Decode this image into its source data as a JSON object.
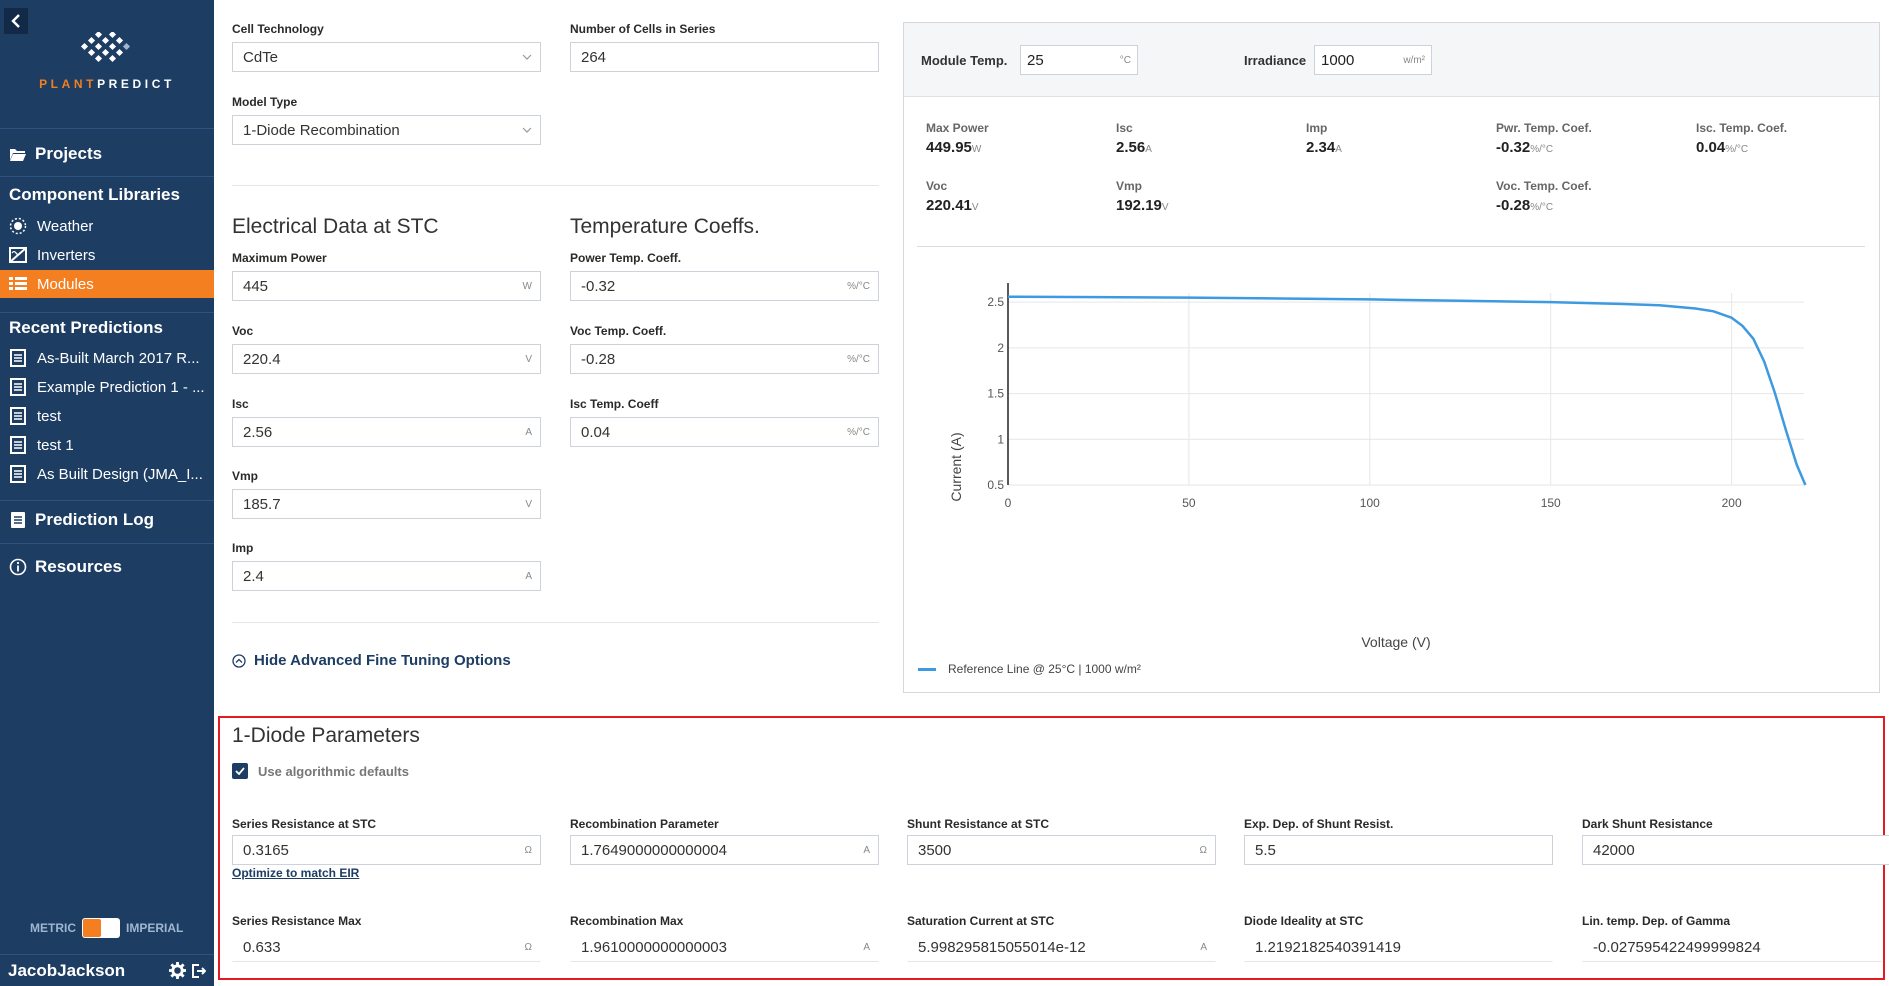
{
  "sidebar": {
    "logo_plant": "PLANT",
    "logo_predict": "PREDICT",
    "projects": "Projects",
    "component_libraries": "Component Libraries",
    "weather": "Weather",
    "inverters": "Inverters",
    "modules": "Modules",
    "recent_predictions": "Recent Predictions",
    "recent_items": [
      "As-Built March 2017 R...",
      "Example Prediction 1 - ...",
      "test",
      "test 1",
      "As Built Design (JMA_I..."
    ],
    "prediction_log": "Prediction Log",
    "resources": "Resources",
    "metric": "METRIC",
    "imperial": "IMPERIAL",
    "user": "JacobJackson"
  },
  "form": {
    "cell_technology_label": "Cell Technology",
    "cell_technology_value": "CdTe",
    "cells_in_series_label": "Number of Cells in Series",
    "cells_in_series_value": "264",
    "model_type_label": "Model Type",
    "model_type_value": "1-Diode Recombination",
    "electrical_title": "Electrical Data at STC",
    "temp_title": "Temperature Coeffs.",
    "max_power_label": "Maximum Power",
    "max_power_value": "445",
    "max_power_unit": "W",
    "voc_label": "Voc",
    "voc_value": "220.4",
    "voc_unit": "V",
    "isc_label": "Isc",
    "isc_value": "2.56",
    "isc_unit": "A",
    "vmp_label": "Vmp",
    "vmp_value": "185.7",
    "vmp_unit": "V",
    "imp_label": "Imp",
    "imp_value": "2.4",
    "imp_unit": "A",
    "power_temp_label": "Power Temp. Coeff.",
    "power_temp_value": "-0.32",
    "voc_temp_label": "Voc Temp. Coeff.",
    "voc_temp_value": "-0.28",
    "isc_temp_label": "Isc Temp. Coeff",
    "isc_temp_value": "0.04",
    "pct_unit": "%/°C",
    "hide_advanced": "Hide Advanced Fine Tuning Options"
  },
  "panel": {
    "module_temp_label": "Module Temp.",
    "module_temp_value": "25",
    "module_temp_unit": "°C",
    "irradiance_label": "Irradiance",
    "irradiance_value": "1000",
    "irradiance_unit": "w/m²",
    "stats": {
      "max_power_k": "Max Power",
      "max_power_v": "449.95",
      "max_power_u": "W",
      "isc_k": "Isc",
      "isc_v": "2.56",
      "isc_u": "A",
      "imp_k": "Imp",
      "imp_v": "2.34",
      "imp_u": "A",
      "pwr_tc_k": "Pwr. Temp. Coef.",
      "pwr_tc_v": "-0.32",
      "pwr_tc_u": "%/°C",
      "isc_tc_k": "Isc. Temp. Coef.",
      "isc_tc_v": "0.04",
      "isc_tc_u": "%/°C",
      "voc_k": "Voc",
      "voc_v": "220.41",
      "voc_u": "V",
      "vmp_k": "Vmp",
      "vmp_v": "192.19",
      "vmp_u": "V",
      "voc_tc_k": "Voc. Temp. Coef.",
      "voc_tc_v": "-0.28",
      "voc_tc_u": "%/°C"
    },
    "legend": "Reference Line @ 25°C | 1000 w/m²"
  },
  "chart_data": {
    "type": "line",
    "title": "",
    "xlabel": "Voltage (V)",
    "ylabel": "Current (A)",
    "xlim": [
      0,
      220
    ],
    "ylim": [
      0.5,
      2.6
    ],
    "x_ticks": [
      0,
      50,
      100,
      150,
      200
    ],
    "y_ticks": [
      0.5,
      1,
      1.5,
      2,
      2.5
    ],
    "y_tick_labels": [
      "0.5",
      "1",
      "1.5",
      "2",
      "2.5"
    ],
    "grid": true,
    "legend_position": "bottom-left",
    "series": [
      {
        "name": "Reference Line @ 25°C | 1000 w/m²",
        "color": "#3d9ae0",
        "x": [
          0,
          25,
          50,
          75,
          100,
          125,
          150,
          170,
          180,
          190,
          195,
          200,
          203,
          206,
          209,
          212,
          215,
          218,
          220.4
        ],
        "y": [
          2.56,
          2.555,
          2.55,
          2.54,
          2.53,
          2.515,
          2.5,
          2.48,
          2.465,
          2.43,
          2.4,
          2.33,
          2.24,
          2.1,
          1.85,
          1.5,
          1.1,
          0.72,
          0.5
        ]
      }
    ]
  },
  "diode": {
    "title": "1-Diode Parameters",
    "use_defaults": "Use algorithmic defaults",
    "optimize_link": "Optimize to match EIR",
    "series_res_label": "Series Resistance at STC",
    "series_res_value": "0.3165",
    "ohm": "Ω",
    "recomb_label": "Recombination Parameter",
    "recomb_value": "1.7649000000000004",
    "amp": "A",
    "shunt_label": "Shunt Resistance at STC",
    "shunt_value": "3500",
    "exp_dep_label": "Exp. Dep. of Shunt Resist.",
    "exp_dep_value": "5.5",
    "dark_shunt_label": "Dark Shunt Resistance",
    "dark_shunt_value": "42000",
    "series_max_label": "Series Resistance Max",
    "series_max_value": "0.633",
    "recomb_max_label": "Recombination Max",
    "recomb_max_value": "1.9610000000000003",
    "sat_current_label": "Saturation Current at STC",
    "sat_current_value": "5.998295815055014e-12",
    "diode_ideality_label": "Diode Ideality at STC",
    "diode_ideality_value": "1.2192182540391419",
    "lin_temp_label": "Lin. temp. Dep. of Gamma",
    "lin_temp_value": "-0.027595422499999824"
  }
}
